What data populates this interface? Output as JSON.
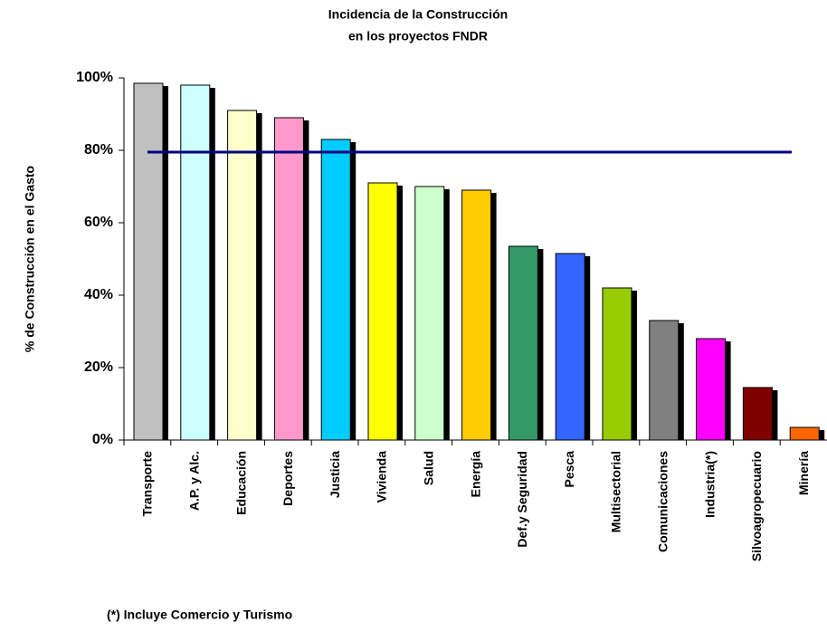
{
  "chart_data": {
    "type": "bar",
    "title": [
      "Incidencia de la Construcción",
      "en los proyectos FNDR"
    ],
    "y_label": "% de Construcción en el Gasto",
    "note": "(*) Incluye Comercio y Turismo",
    "categories": [
      "Transporte",
      "A.P. y Alc.",
      "Educación",
      "Deportes",
      "Justicia",
      "Vivienda",
      "Salud",
      "Energía",
      "Def.y Seguridad",
      "Pesca",
      "Multisectorial",
      "Comunicaciones",
      "Industria(*)",
      "Silvoagropecuario",
      "Minería"
    ],
    "values": [
      98.5,
      98,
      91,
      89,
      83,
      71,
      70,
      69,
      53.5,
      51.5,
      42,
      33,
      28,
      14.5,
      3.5
    ],
    "colors": [
      "#c0c0c0",
      "#ccffff",
      "#ffffcc",
      "#ff99cc",
      "#00ccff",
      "#ffff00",
      "#ccffcc",
      "#ffcc00",
      "#339966",
      "#3366ff",
      "#99cc00",
      "#808080",
      "#ff00ff",
      "#800000",
      "#ff6600"
    ],
    "reference_line": 79.5,
    "reference_color": "#000080",
    "ylim": [
      0,
      100
    ],
    "yticks": [
      {
        "value": 0,
        "label": "0%"
      },
      {
        "value": 20,
        "label": "20%"
      },
      {
        "value": 40,
        "label": "40%"
      },
      {
        "value": 60,
        "label": "60%"
      },
      {
        "value": 80,
        "label": "80%"
      },
      {
        "value": 100,
        "label": "100%"
      }
    ]
  }
}
